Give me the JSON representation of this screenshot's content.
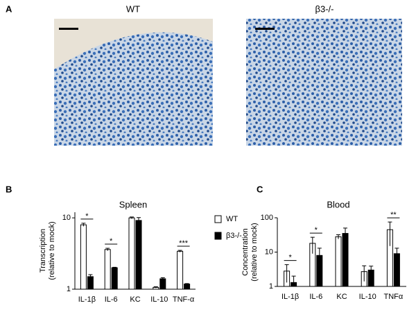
{
  "panel_a": {
    "label": "A",
    "images": [
      {
        "title": "WT"
      },
      {
        "title": "β3-/-"
      }
    ]
  },
  "chart_data": [
    {
      "type": "bar",
      "panel": "B",
      "title": "Spleen",
      "ylabel": [
        "Transcription",
        "(relative to mock)"
      ],
      "categories": [
        "IL-1β",
        "IL-6",
        "KC",
        "IL-10",
        "TNF-α"
      ],
      "log": true,
      "ylim": [
        1,
        12
      ],
      "yticks": [
        1,
        10
      ],
      "series": [
        {
          "name": "WT",
          "color": "#ffffff",
          "values": [
            8,
            3.6,
            10,
            1.06,
            3.4
          ],
          "errors": [
            0.4,
            0.15,
            0.3,
            0.02,
            0.1
          ]
        },
        {
          "name": "β3-/-",
          "color": "#000000",
          "values": [
            1.5,
            2.0,
            9.2,
            1.4,
            1.18
          ],
          "errors": [
            0.1,
            0.03,
            0.9,
            0.05,
            0.02
          ]
        }
      ],
      "significance": [
        {
          "category": "IL-1β",
          "label": "*"
        },
        {
          "category": "IL-6",
          "label": "*"
        },
        {
          "category": "TNF-α",
          "label": "***"
        }
      ]
    },
    {
      "type": "bar",
      "panel": "C",
      "title": "Blood",
      "ylabel": [
        "Concentration",
        "(relative to mock)"
      ],
      "categories": [
        "IL-1β",
        "IL-6",
        "KC",
        "IL-10",
        "TNFα"
      ],
      "log": true,
      "ylim": [
        1,
        100
      ],
      "yticks": [
        1,
        10,
        100
      ],
      "series": [
        {
          "color": "#ffffff",
          "values": [
            2.8,
            18,
            28,
            2.7,
            45
          ],
          "errors": [
            1.5,
            9,
            4,
            1.3,
            30
          ]
        },
        {
          "color": "#000000",
          "values": [
            1.3,
            8,
            35,
            3,
            9
          ],
          "errors": [
            0.7,
            5,
            15,
            0.9,
            4
          ]
        }
      ],
      "significance": [
        {
          "category": "IL-1β",
          "label": "*"
        },
        {
          "category": "IL-6",
          "label": "*"
        },
        {
          "category": "TNFα",
          "label": "**"
        }
      ]
    }
  ]
}
